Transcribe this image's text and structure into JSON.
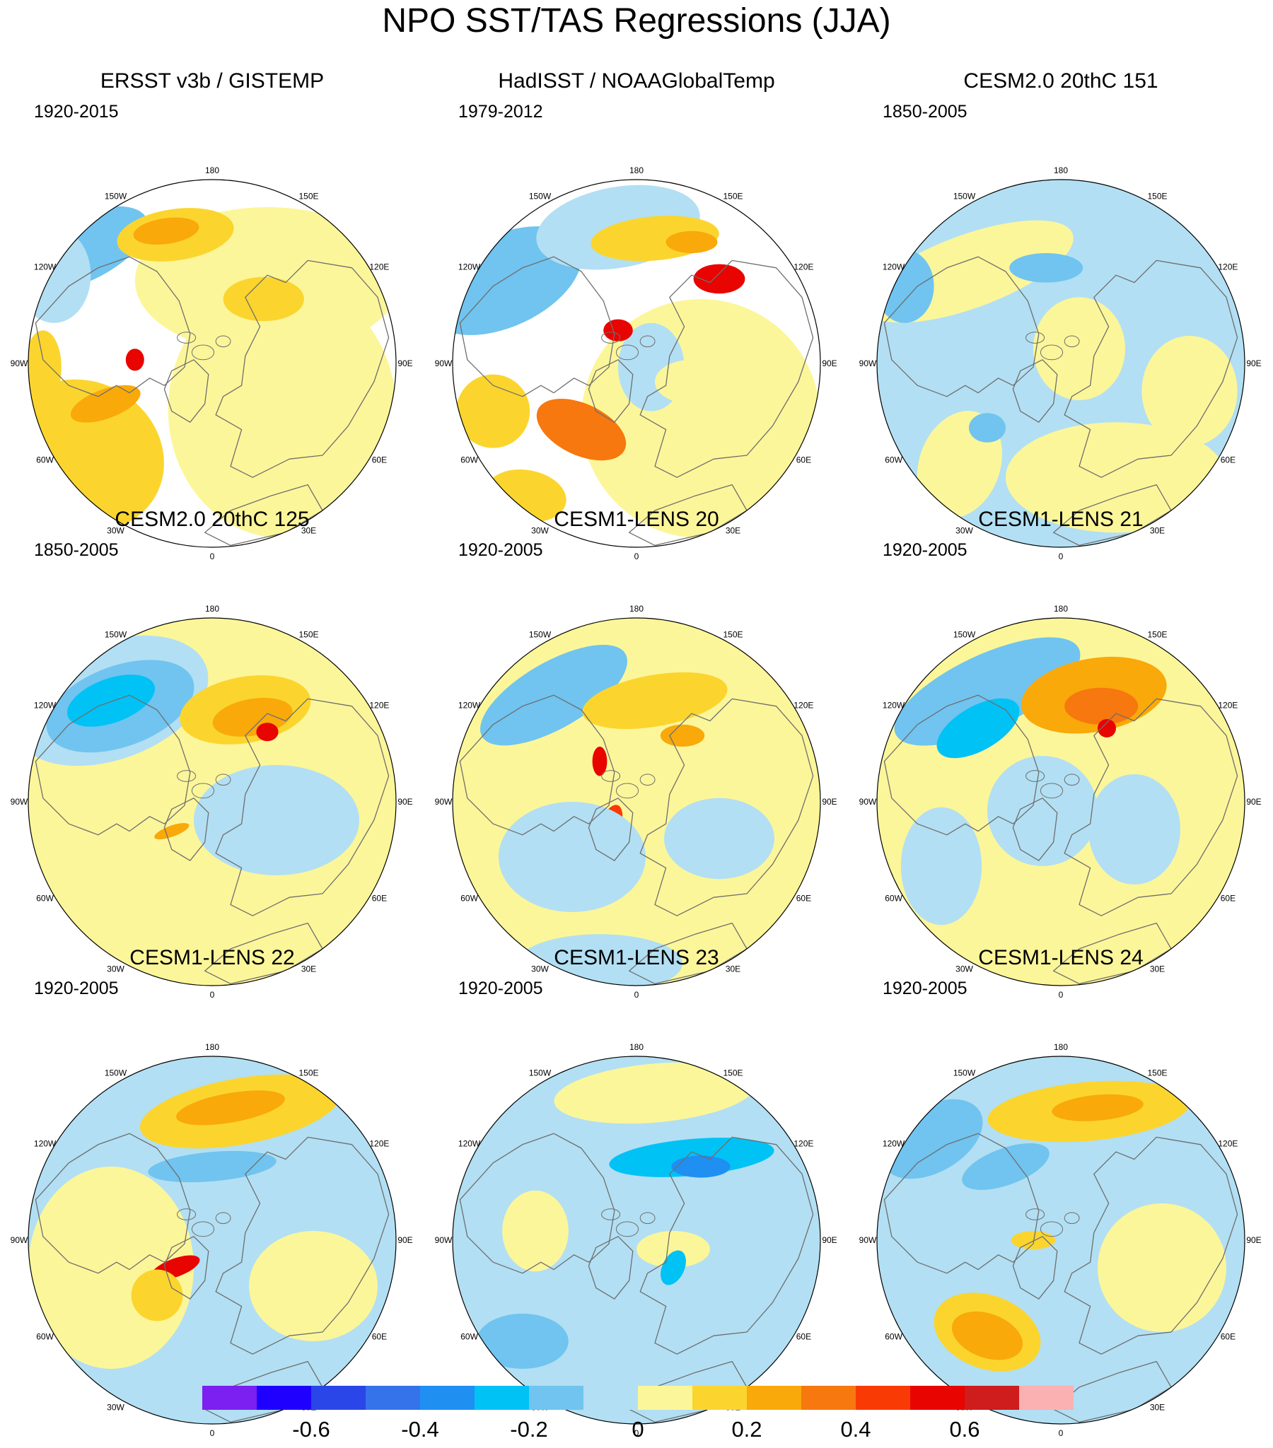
{
  "figure": {
    "title": "NPO SST/TAS Regressions (JJA)"
  },
  "longitude_labels": [
    "180",
    "150E",
    "120E",
    "90E",
    "60E",
    "30E",
    "0",
    "30W",
    "60W",
    "90W",
    "120W",
    "150W"
  ],
  "panels": [
    {
      "title": "ERSST v3b / GISTEMP",
      "period": "1920-2015",
      "pattern": "obs1"
    },
    {
      "title": "HadISST / NOAAGlobalTemp",
      "period": "1979-2012",
      "pattern": "obs2"
    },
    {
      "title": "CESM2.0 20thC 151",
      "period": "1850-2005",
      "pattern": "weak"
    },
    {
      "title": "CESM2.0 20thC 125",
      "period": "1850-2005",
      "pattern": "strong"
    },
    {
      "title": "CESM1-LENS 20",
      "period": "1920-2005",
      "pattern": "lens20"
    },
    {
      "title": "CESM1-LENS 21",
      "period": "1920-2005",
      "pattern": "lens21"
    },
    {
      "title": "CESM1-LENS 22",
      "period": "1920-2005",
      "pattern": "lens22"
    },
    {
      "title": "CESM1-LENS 23",
      "period": "1920-2005",
      "pattern": "lens23"
    },
    {
      "title": "CESM1-LENS 24",
      "period": "1920-2005",
      "pattern": "lens24"
    }
  ],
  "colorbar": {
    "colors": [
      "#7b20f0",
      "#1f00ff",
      "#2a46e8",
      "#3473ea",
      "#1f8ff2",
      "#00c2f5",
      "#70c4ef",
      "#b2dff3",
      "#fcf69a",
      "#fbd52e",
      "#f9a90a",
      "#f6780e",
      "#f93a05",
      "#e80400",
      "#cf1c1c",
      "#fbb1b1"
    ],
    "tick_labels": [
      "-0.6",
      "-0.4",
      "-0.2",
      "0",
      "0.2",
      "0.4",
      "0.6"
    ]
  }
}
